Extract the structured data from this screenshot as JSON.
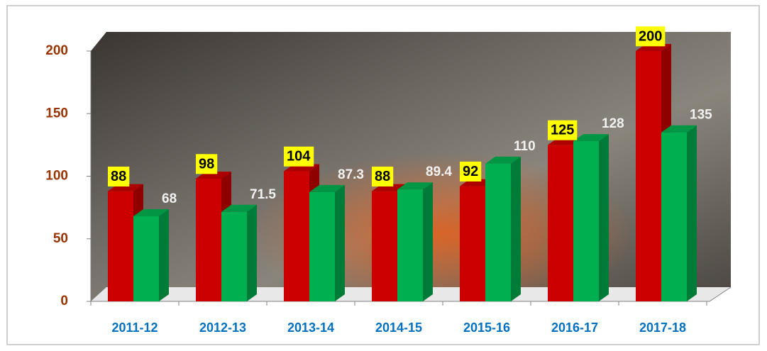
{
  "chart_data": {
    "type": "bar3d",
    "categories": [
      "2011-12",
      "2012-13",
      "2013-14",
      "2014-15",
      "2015-16",
      "2016-17",
      "2017-18"
    ],
    "series": [
      {
        "color": "#cc0000",
        "values": [
          88,
          98,
          104,
          88,
          92,
          125,
          200
        ]
      },
      {
        "color": "#00b050",
        "values": [
          68,
          71.5,
          87.3,
          89.4,
          110,
          128,
          135
        ]
      }
    ],
    "ylim": [
      0,
      200
    ],
    "yticks": [
      0,
      50,
      100,
      150,
      200
    ]
  }
}
